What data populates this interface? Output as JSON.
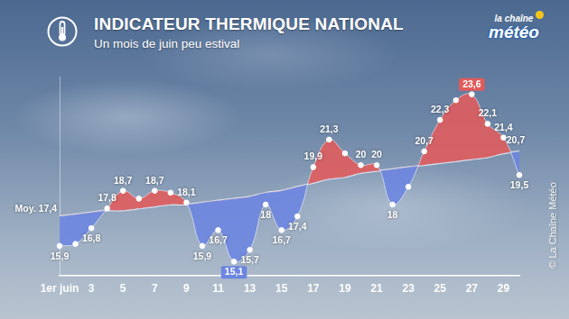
{
  "chart_data": {
    "type": "line",
    "title": "INDICATEUR THERMIQUE NATIONAL",
    "subtitle": "Un mois de juin peu estival",
    "annotations": {
      "logo": [
        "la chaîne",
        "météo"
      ],
      "copyright": "© La Chaîne Météo"
    },
    "categories": [
      "1er juin",
      null,
      "3",
      null,
      "5",
      null,
      "7",
      null,
      "9",
      null,
      "11",
      null,
      "13",
      null,
      "15",
      null,
      "17",
      null,
      "19",
      null,
      "21",
      null,
      "23",
      null,
      "25",
      null,
      "27",
      null,
      "29",
      null
    ],
    "series": [
      {
        "values": [
          15.9,
          16.0,
          16.8,
          17.8,
          18.7,
          18.3,
          18.7,
          18.6,
          18.1,
          15.9,
          16.7,
          15.1,
          15.7,
          18.0,
          16.7,
          17.4,
          19.9,
          21.3,
          20.6,
          20.0,
          20.0,
          18.0,
          18.9,
          20.7,
          22.3,
          23.3,
          23.6,
          22.1,
          21.4,
          19.5
        ],
        "value_labels": [
          "15,9",
          null,
          "16,8",
          "17,8",
          "18,7",
          null,
          "18,7",
          null,
          "18,1",
          "15,9",
          "16,7",
          "15,1",
          "15,7",
          "18",
          "16,7",
          "17,4",
          "19,9",
          "21,3",
          null,
          "20",
          "20",
          "18",
          null,
          "20,7",
          "22,3",
          null,
          "23,6",
          "22,1",
          "21,4",
          "19,5"
        ],
        "colors": [
          "#6c85e0",
          "#6c85e0",
          "#6c85e0",
          "#e15b5b",
          "#e15b5b",
          "#e15b5b",
          "#e15b5b",
          "#e15b5b",
          "#e15b5b",
          "#6c85e0",
          "#6c85e0",
          "#6c85e0",
          "#6c85e0",
          "#6c85e0",
          "#6c85e0",
          "#6c85e0",
          "#e15b5b",
          "#e15b5b",
          "#e15b5b",
          "#e15b5b",
          "#e15b5b",
          "#6c85e0",
          "#6c85e0",
          "#e15b5b",
          "#e15b5b",
          "#e15b5b",
          "#e15b5b",
          "#e15b5b",
          "#e15b5b",
          "#6c85e0"
        ],
        "marker": "circle"
      },
      {
        "values": [
          17.4,
          17.5,
          17.6,
          17.7,
          17.7,
          17.8,
          17.9,
          18.0,
          18.0,
          18.1,
          18.2,
          18.3,
          18.4,
          18.6,
          18.7,
          18.9,
          19.1,
          19.3,
          19.4,
          19.6,
          19.7,
          19.8,
          19.9,
          20.0,
          20.1,
          20.2,
          20.3,
          20.4,
          20.6,
          20.7
        ],
        "value_labels": [
          "Moy. 17,4",
          null,
          null,
          null,
          null,
          null,
          null,
          null,
          null,
          null,
          null,
          null,
          null,
          null,
          null,
          null,
          null,
          null,
          null,
          null,
          null,
          null,
          null,
          null,
          null,
          null,
          null,
          null,
          null,
          "20,7"
        ],
        "color": "#dfe4ec"
      }
    ],
    "ylim": [
      14.4,
      24.5
    ],
    "grid": false,
    "legend": false,
    "tick_labels": "x",
    "data_labels": true
  }
}
